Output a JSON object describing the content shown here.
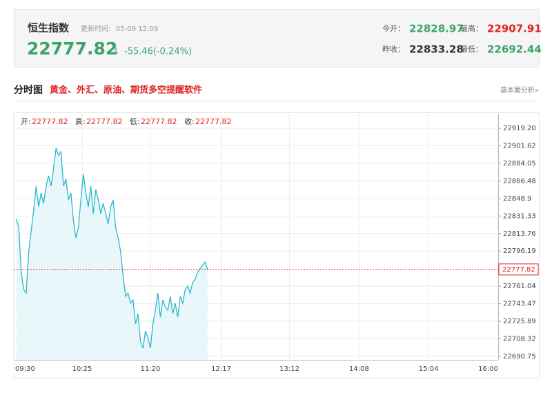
{
  "header": {
    "title": "恒生指数",
    "update_label": "更新时间:",
    "update_time": "05-09 12:09",
    "price": "22777.82",
    "arrow": "↓",
    "change": "-55.46(-0.24%)",
    "open_label": "今开：",
    "open": "22828.97",
    "high_label": "最高：",
    "high": "22907.91",
    "prev_close_label": "昨收：",
    "prev_close": "22833.28",
    "low_label": "最低：",
    "low": "22692.44"
  },
  "section": {
    "title": "分时图",
    "promo": "黄金、外汇、原油、期货多空提醒软件",
    "link": "基本面分析»"
  },
  "chart_data": {
    "type": "line",
    "info": [
      {
        "label": "开:",
        "value": "22777.82"
      },
      {
        "label": "高:",
        "value": "22777.82"
      },
      {
        "label": "低:",
        "value": "22777.82"
      },
      {
        "label": "收:",
        "value": "22777.82"
      }
    ],
    "x": [
      "09:32",
      "09:34",
      "09:36",
      "09:38",
      "09:40",
      "09:42",
      "09:44",
      "09:46",
      "09:48",
      "09:50",
      "09:52",
      "09:54",
      "09:56",
      "09:58",
      "10:00",
      "10:02",
      "10:04",
      "10:06",
      "10:08",
      "10:10",
      "10:12",
      "10:14",
      "10:16",
      "10:18",
      "10:20",
      "10:22",
      "10:24",
      "10:26",
      "10:28",
      "10:30",
      "10:32",
      "10:34",
      "10:36",
      "10:38",
      "10:40",
      "10:42",
      "10:44",
      "10:46",
      "10:48",
      "10:50",
      "10:52",
      "10:54",
      "10:56",
      "10:58",
      "11:00",
      "11:02",
      "11:04",
      "11:06",
      "11:08",
      "11:10",
      "11:12",
      "11:14",
      "11:16",
      "11:18",
      "11:20",
      "11:22",
      "11:24",
      "11:26",
      "11:28",
      "11:30",
      "11:32",
      "11:34",
      "11:36",
      "11:38",
      "11:40",
      "11:42",
      "11:44",
      "11:46",
      "11:48",
      "11:50",
      "11:52",
      "11:54",
      "11:56",
      "11:58",
      "12:00",
      "12:02",
      "12:04",
      "12:06"
    ],
    "series": [
      {
        "color": "#2bb8cc",
        "fill": "#e9f7fb",
        "values": [
          22828.1,
          22819.8,
          22774.9,
          22757.7,
          22754.2,
          22795.7,
          22816.4,
          22837.1,
          22861.2,
          22840.5,
          22854.3,
          22844.0,
          22861.2,
          22871.6,
          22861.2,
          22878.5,
          22899.2,
          22892.3,
          22895.7,
          22861.2,
          22868.1,
          22847.4,
          22854.3,
          22826.7,
          22809.5,
          22819.8,
          22847.4,
          22873.6,
          22854.3,
          22840.5,
          22861.2,
          22833.6,
          22857.8,
          22847.4,
          22833.6,
          22844.0,
          22833.6,
          22823.3,
          22840.5,
          22847.4,
          22819.8,
          22809.5,
          22795.7,
          22771.5,
          22750.8,
          22754.2,
          22743.9,
          22747.3,
          22723.2,
          22733.5,
          22705.9,
          22699.0,
          22716.3,
          22709.4,
          22699.0,
          22723.2,
          22737.0,
          22754.2,
          22730.1,
          22747.3,
          22740.4,
          22737.0,
          22750.8,
          22733.5,
          22743.9,
          22730.1,
          22750.8,
          22743.9,
          22757.7,
          22761.1,
          22754.2,
          22764.6,
          22768.0,
          22774.9,
          22778.4,
          22781.9,
          22785.3,
          22777.82
        ]
      }
    ],
    "xlim": [
      "09:30",
      "16:00"
    ],
    "xticks": [
      "09:30",
      "10:25",
      "11:20",
      "12:17",
      "13:12",
      "14:08",
      "15:04",
      "16:00"
    ],
    "ylim": [
      22687.3,
      22928.17
    ],
    "yticks": [
      {
        "value": 22919.2,
        "label": "22919.20"
      },
      22901.62,
      22884.05,
      22866.48,
      22848.9,
      22831.33,
      22813.76,
      22796.19,
      22761.04,
      22743.47,
      22725.89,
      22708.32,
      22690.75
    ],
    "marker": 22777.82,
    "marker_color": "#e02020",
    "grid": true
  }
}
